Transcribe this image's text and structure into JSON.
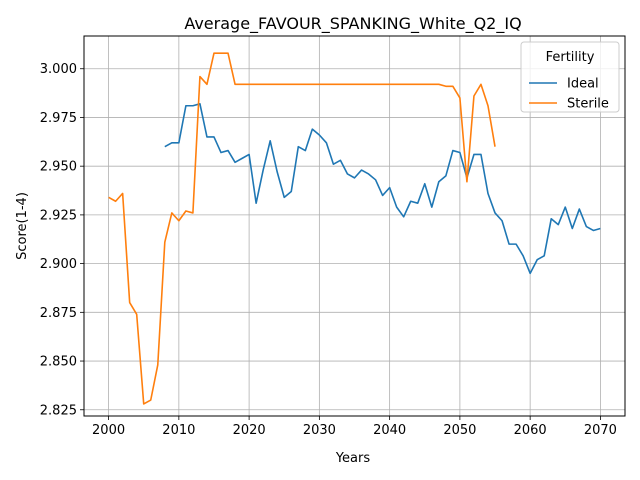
{
  "chart_data": {
    "type": "line",
    "title": "Average_FAVOUR_SPANKING_White_Q2_IQ",
    "xlabel": "Years",
    "ylabel": "Score(1-4)",
    "xlim": [
      1996.5,
      2073.5
    ],
    "ylim": [
      2.8218,
      3.0168
    ],
    "x_ticks": [
      2000,
      2010,
      2020,
      2030,
      2040,
      2050,
      2060,
      2070
    ],
    "y_ticks": [
      2.825,
      2.85,
      2.875,
      2.9,
      2.925,
      2.95,
      2.975,
      3.0
    ],
    "x_tick_labels": [
      "2000",
      "2010",
      "2020",
      "2030",
      "2040",
      "2050",
      "2060",
      "2070"
    ],
    "y_tick_labels": [
      "2.825",
      "2.850",
      "2.875",
      "2.900",
      "2.925",
      "2.950",
      "2.975",
      "3.000"
    ],
    "grid": true,
    "legend": {
      "title": "Fertility",
      "placement": "top-right"
    },
    "series": [
      {
        "name": "Ideal",
        "color": "#1f77b4",
        "x": [
          2008,
          2009,
          2010,
          2011,
          2012,
          2013,
          2014,
          2015,
          2016,
          2017,
          2018,
          2019,
          2020,
          2021,
          2022,
          2023,
          2024,
          2025,
          2026,
          2027,
          2028,
          2029,
          2030,
          2031,
          2032,
          2033,
          2034,
          2035,
          2036,
          2037,
          2038,
          2039,
          2040,
          2041,
          2042,
          2043,
          2044,
          2045,
          2046,
          2047,
          2048,
          2049,
          2050,
          2051,
          2052,
          2053,
          2054,
          2055,
          2056,
          2057,
          2058,
          2059,
          2060,
          2061,
          2062,
          2063,
          2064,
          2065,
          2066,
          2067,
          2068,
          2069,
          2070
        ],
        "y": [
          2.96,
          2.962,
          2.962,
          2.981,
          2.981,
          2.982,
          2.965,
          2.965,
          2.957,
          2.958,
          2.952,
          2.954,
          2.956,
          2.931,
          2.948,
          2.963,
          2.947,
          2.934,
          2.937,
          2.96,
          2.958,
          2.969,
          2.966,
          2.962,
          2.951,
          2.953,
          2.946,
          2.944,
          2.948,
          2.946,
          2.943,
          2.935,
          2.939,
          2.929,
          2.924,
          2.932,
          2.931,
          2.941,
          2.929,
          2.942,
          2.945,
          2.958,
          2.957,
          2.944,
          2.956,
          2.956,
          2.936,
          2.926,
          2.922,
          2.91,
          2.91,
          2.904,
          2.895,
          2.902,
          2.904,
          2.923,
          2.92,
          2.929,
          2.918,
          2.928,
          2.919,
          2.917,
          2.918
        ]
      },
      {
        "name": "Sterile",
        "color": "#ff7f0e",
        "x": [
          2000,
          2001,
          2002,
          2003,
          2004,
          2005,
          2006,
          2007,
          2008,
          2009,
          2010,
          2011,
          2012,
          2013,
          2014,
          2015,
          2016,
          2017,
          2018,
          2019,
          2020,
          2021,
          2022,
          2023,
          2024,
          2025,
          2026,
          2027,
          2028,
          2029,
          2030,
          2031,
          2032,
          2033,
          2034,
          2035,
          2036,
          2037,
          2038,
          2039,
          2040,
          2041,
          2042,
          2043,
          2044,
          2045,
          2046,
          2047,
          2048,
          2049,
          2050,
          2051,
          2052,
          2053,
          2054,
          2055
        ],
        "y": [
          2.934,
          2.932,
          2.936,
          2.88,
          2.874,
          2.828,
          2.83,
          2.848,
          2.911,
          2.926,
          2.922,
          2.927,
          2.926,
          2.996,
          2.992,
          3.008,
          3.008,
          3.008,
          2.992,
          2.992,
          2.992,
          2.992,
          2.992,
          2.992,
          2.992,
          2.992,
          2.992,
          2.992,
          2.992,
          2.992,
          2.992,
          2.992,
          2.992,
          2.992,
          2.992,
          2.992,
          2.992,
          2.992,
          2.992,
          2.992,
          2.992,
          2.992,
          2.992,
          2.992,
          2.992,
          2.992,
          2.992,
          2.992,
          2.991,
          2.991,
          2.985,
          2.942,
          2.986,
          2.992,
          2.981,
          2.96
        ]
      }
    ]
  }
}
